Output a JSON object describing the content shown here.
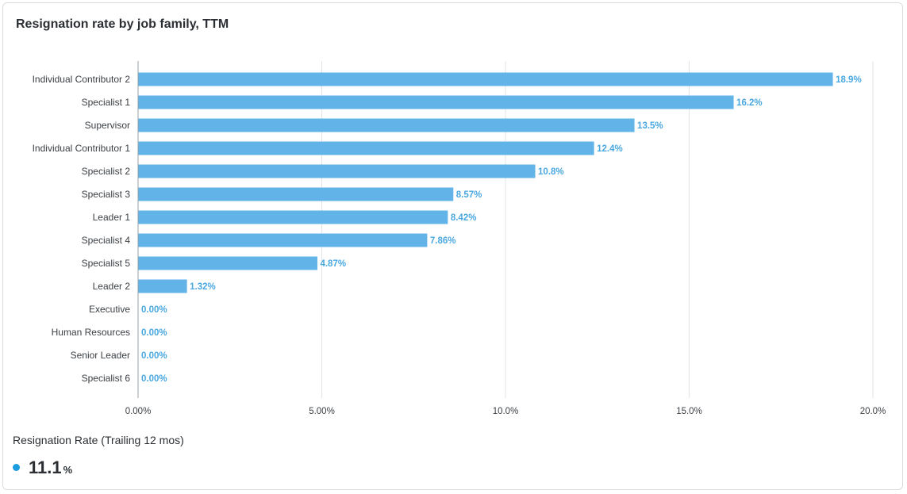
{
  "card": {
    "title": "Resignation rate by job family, TTM"
  },
  "chart_data": {
    "type": "bar",
    "orientation": "horizontal",
    "title": "Resignation rate by job family, TTM",
    "xlabel": "",
    "ylabel": "",
    "xlim": [
      0,
      20
    ],
    "grid": true,
    "bar_color": "#62b4e8",
    "label_color": "#4aa8e0",
    "categories": [
      "Individual Contributor 2",
      "Specialist 1",
      "Supervisor",
      "Individual Contributor 1",
      "Specialist 2",
      "Specialist 3",
      "Leader 1",
      "Specialist 4",
      "Specialist 5",
      "Leader 2",
      "Executive",
      "Human Resources",
      "Senior Leader",
      "Specialist 6"
    ],
    "values": [
      18.9,
      16.2,
      13.5,
      12.4,
      10.8,
      8.57,
      8.42,
      7.86,
      4.87,
      1.32,
      0,
      0,
      0,
      0
    ],
    "value_labels": [
      "18.9%",
      "16.2%",
      "13.5%",
      "12.4%",
      "10.8%",
      "8.57%",
      "8.42%",
      "7.86%",
      "4.87%",
      "1.32%",
      "0.00%",
      "0.00%",
      "0.00%",
      "0.00%"
    ],
    "x_ticks": [
      0,
      5,
      10,
      15,
      20
    ],
    "x_tick_labels": [
      "0.00%",
      "5.00%",
      "10.0%",
      "15.0%",
      "20.0%"
    ]
  },
  "summary": {
    "label": "Resignation Rate (Trailing 12 mos)",
    "value": "11.1",
    "unit": "%",
    "dot_color": "#1b9be0"
  }
}
